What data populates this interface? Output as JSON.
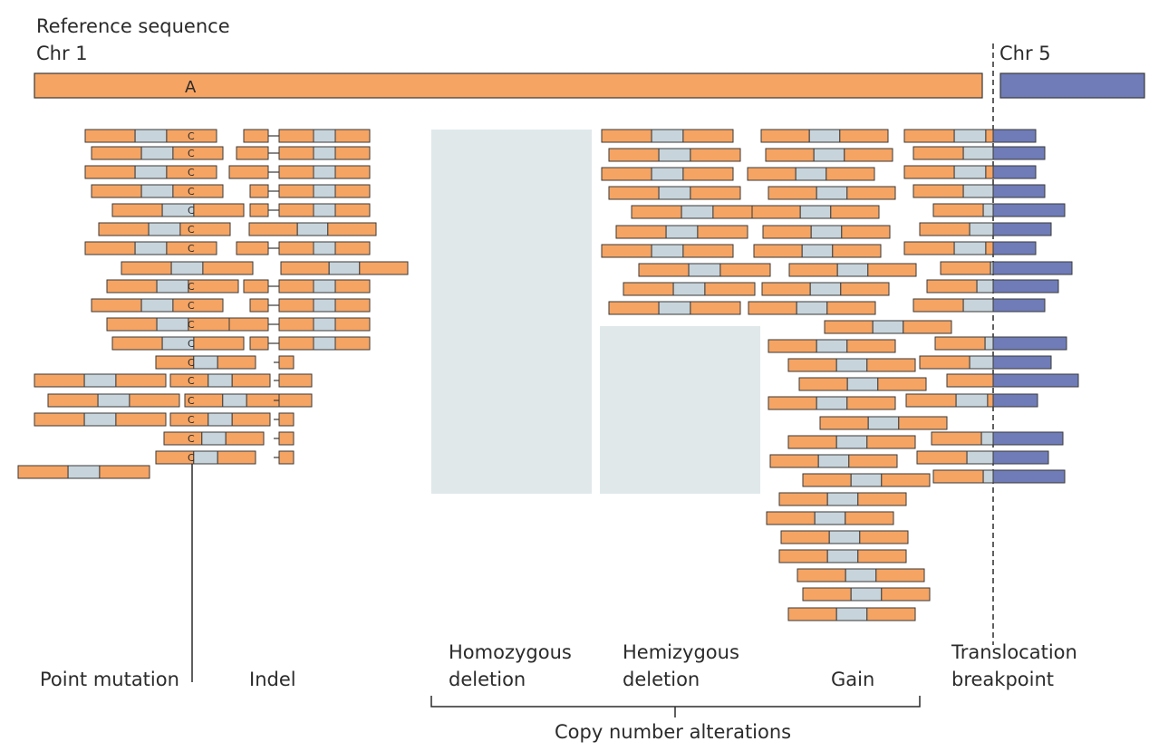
{
  "header": {
    "title": "Reference sequence",
    "chr_left": "Chr 1",
    "chr_right": "Chr 5",
    "ref_base": "A"
  },
  "mutation": {
    "base": "C"
  },
  "labels": {
    "point_mutation": "Point mutation",
    "indel": "Indel",
    "homozygous": "Homozygous",
    "homozygous_2": "deletion",
    "hemizygous": "Hemizygous",
    "hemizygous_2": "deletion",
    "gain": "Gain",
    "translocation": "Translocation",
    "translocation_2": "breakpoint",
    "copy_number": "Copy number alterations"
  },
  "colors": {
    "read_end": "#f5a463",
    "read_mid": "#c8d4db",
    "chr5": "#6f7cb8",
    "outline": "#3a3a3a",
    "deletion_box": "#e0e8ea"
  }
}
